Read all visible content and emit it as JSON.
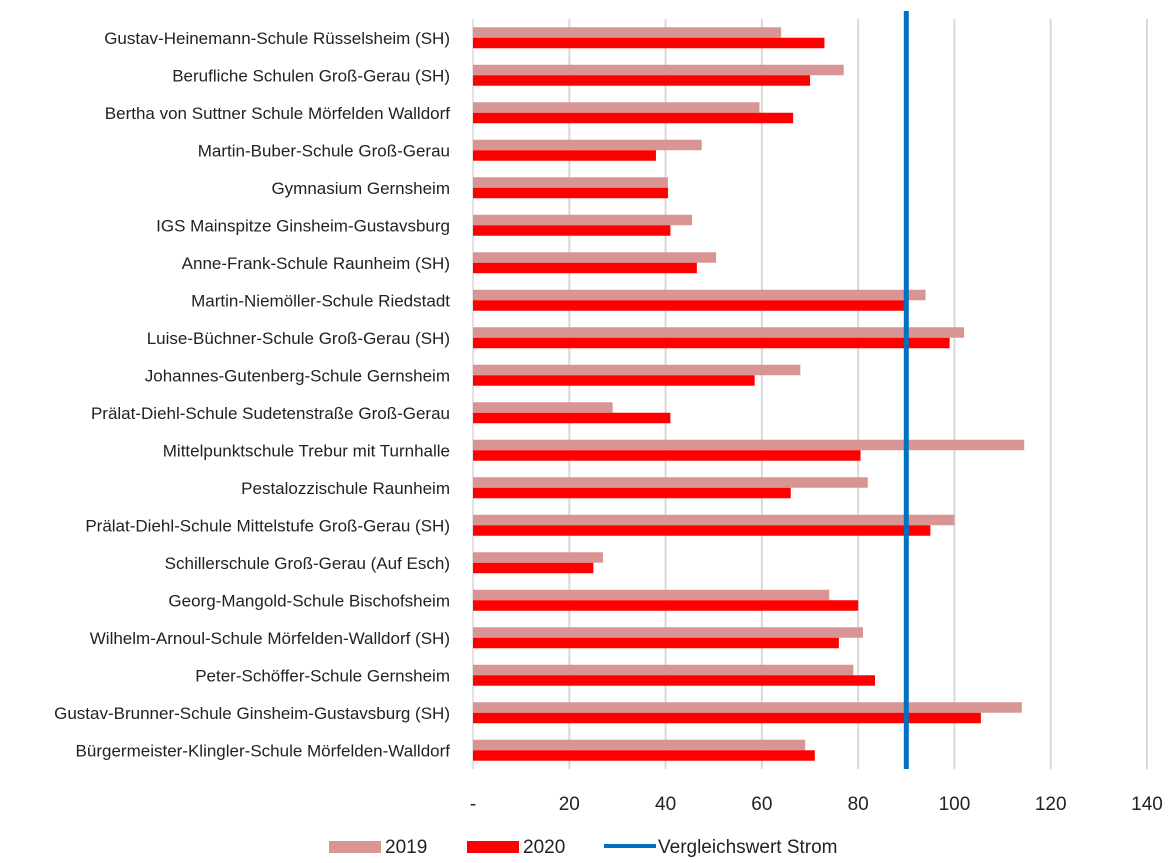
{
  "chart_data": {
    "type": "bar",
    "orientation": "horizontal",
    "categories": [
      "Gustav-Heinemann-Schule Rüsselsheim (SH)",
      "Berufliche Schulen Groß-Gerau (SH)",
      "Bertha von Suttner Schule Mörfelden Walldorf",
      "Martin-Buber-Schule Groß-Gerau",
      "Gymnasium Gernsheim",
      "IGS Mainspitze Ginsheim-Gustavsburg",
      "Anne-Frank-Schule Raunheim (SH)",
      "Martin-Niemöller-Schule Riedstadt",
      "Luise-Büchner-Schule Groß-Gerau (SH)",
      "Johannes-Gutenberg-Schule Gernsheim",
      "Prälat-Diehl-Schule Sudetenstraße Groß-Gerau",
      "Mittelpunktschule Trebur mit Turnhalle",
      "Pestalozzischule Raunheim",
      "Prälat-Diehl-Schule Mittelstufe Groß-Gerau (SH)",
      "Schillerschule Groß-Gerau (Auf Esch)",
      "Georg-Mangold-Schule Bischofsheim",
      "Wilhelm-Arnoul-Schule Mörfelden-Walldorf (SH)",
      "Peter-Schöffer-Schule Gernsheim",
      "Gustav-Brunner-Schule Ginsheim-Gustavsburg (SH)",
      "Bürgermeister-Klingler-Schule Mörfelden-Walldorf"
    ],
    "series": [
      {
        "name": "2019",
        "color": "#d99594",
        "values": [
          64,
          77,
          59.5,
          47.5,
          40.5,
          45.5,
          50.5,
          94,
          102,
          68,
          29,
          114.5,
          82,
          100,
          27,
          74,
          81,
          79,
          114,
          69
        ]
      },
      {
        "name": "2020",
        "color": "#ff0000",
        "values": [
          73,
          70,
          66.5,
          38,
          40.5,
          41,
          46.5,
          90,
          99,
          58.5,
          41,
          80.5,
          66,
          95,
          25,
          80,
          76,
          83.5,
          105.5,
          71
        ]
      }
    ],
    "reference_line": {
      "name": "Vergleichswert Strom",
      "value": 90,
      "color": "#0070c0"
    },
    "xlim": [
      0,
      140
    ],
    "x_ticks": [
      "-",
      "20",
      "40",
      "60",
      "80",
      "100",
      "120",
      "140"
    ],
    "x_tick_values": [
      0,
      20,
      40,
      60,
      80,
      100,
      120,
      140
    ],
    "grid": true,
    "legend_position": "bottom"
  }
}
